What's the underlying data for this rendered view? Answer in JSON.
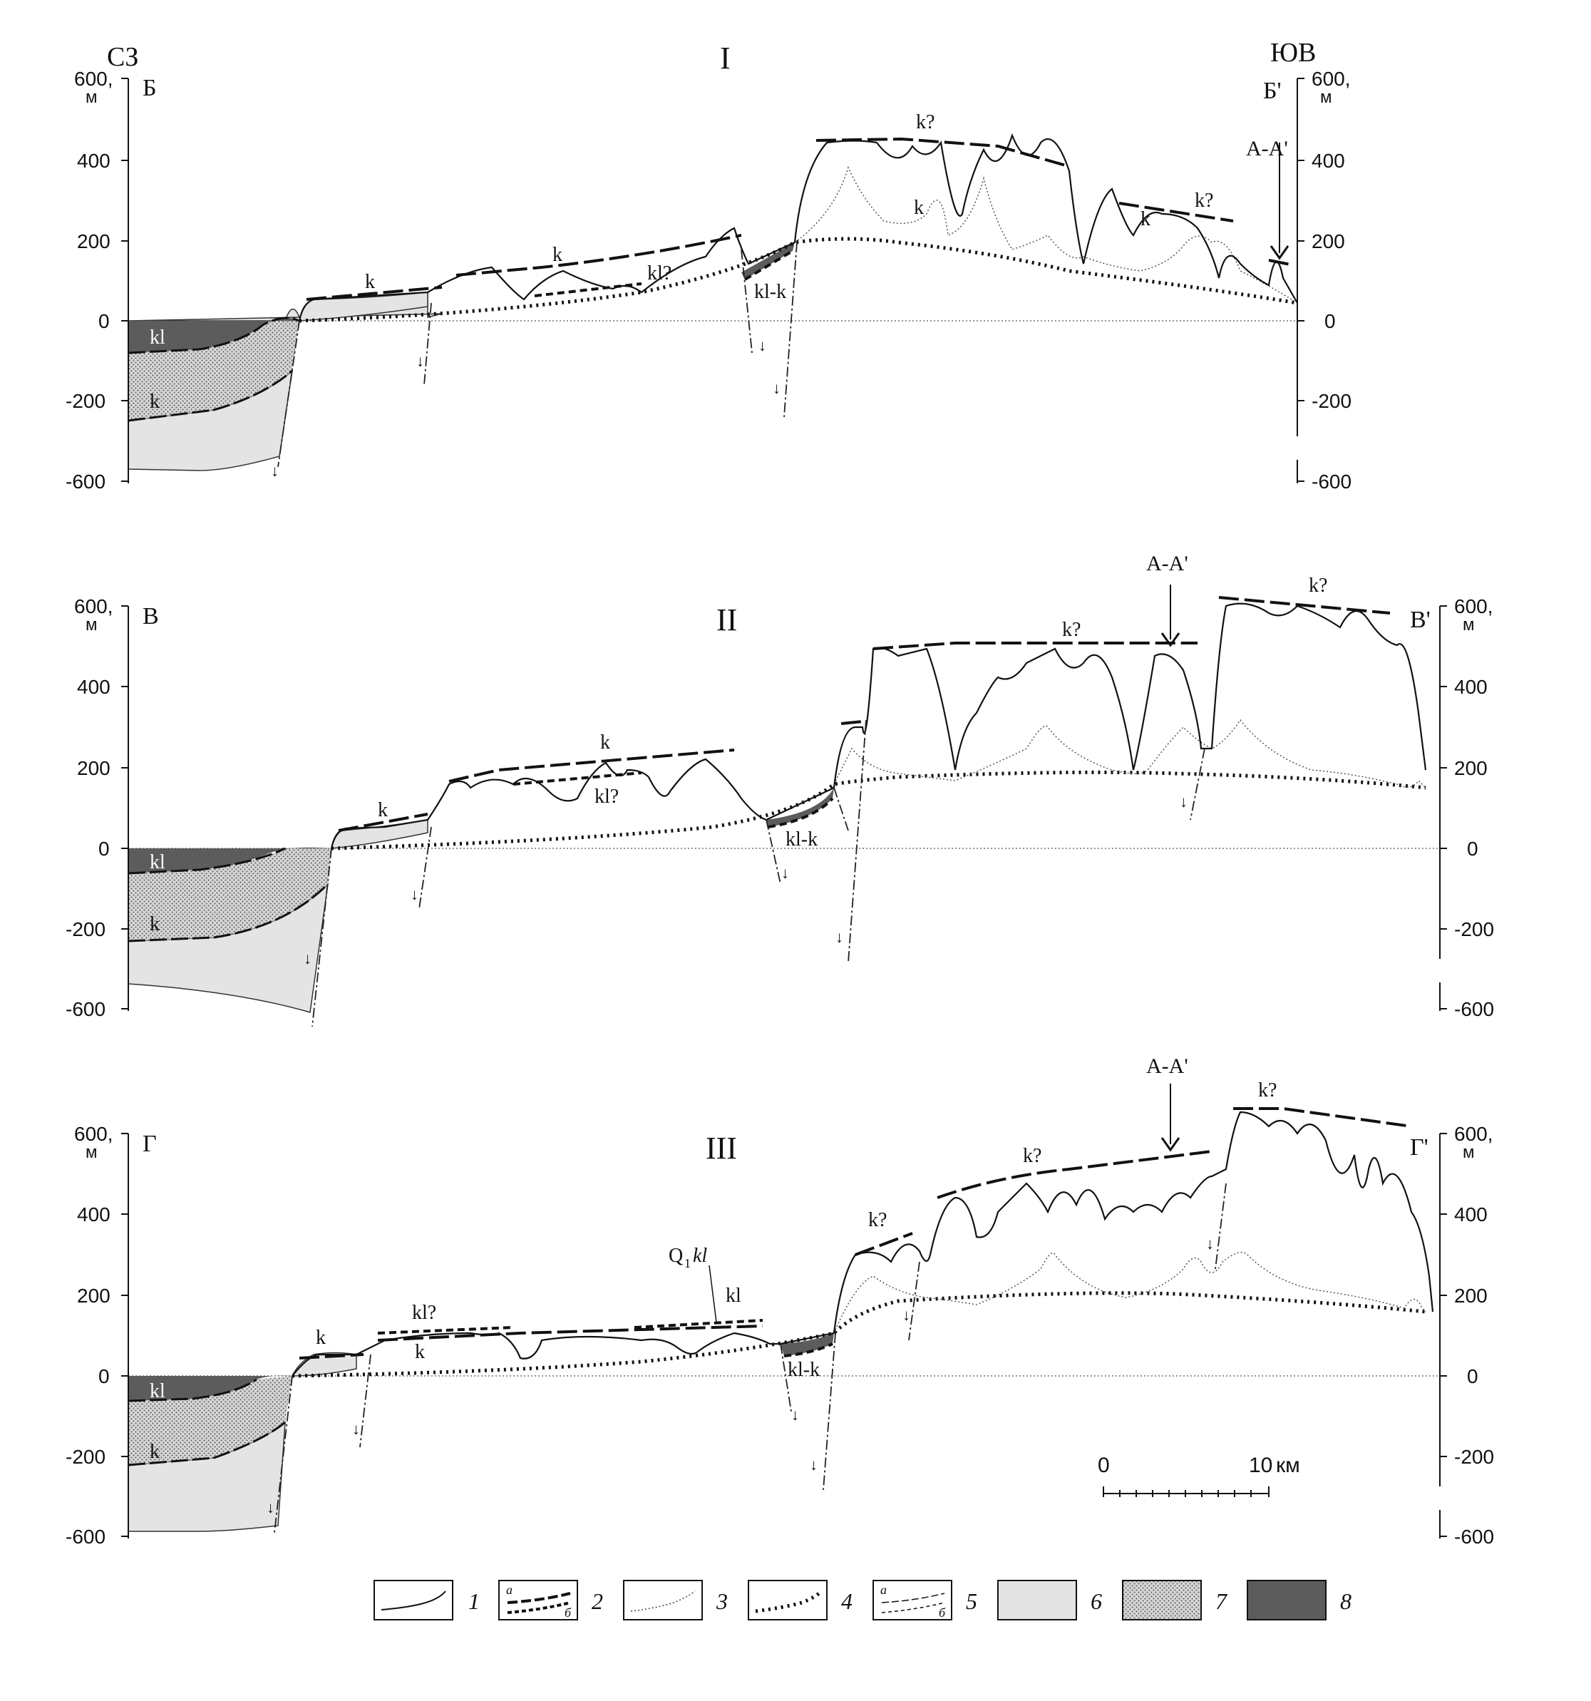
{
  "corner_labels": {
    "left": "СЗ",
    "right": "ЮВ"
  },
  "axis_ticks": [
    "600,",
    "м",
    "400",
    "200",
    "0",
    "-200",
    "-600"
  ],
  "profiles": [
    {
      "numeral": "I",
      "start": "Б",
      "end": "Б'",
      "arrow": "А-А'",
      "labels": [
        "kl",
        "k",
        "k",
        "k",
        "kl?",
        "kl-k",
        "k?",
        "k",
        "k?",
        "k"
      ]
    },
    {
      "numeral": "II",
      "start": "В",
      "end": "В'",
      "arrow": "А-А'",
      "labels": [
        "kl",
        "k",
        "k",
        "k",
        "kl?",
        "kl-k",
        "k?",
        "k?"
      ]
    },
    {
      "numeral": "III",
      "start": "Г",
      "end": "Г'",
      "arrow": "А-А'",
      "labels": [
        "kl",
        "k",
        "k",
        "kl?",
        "k",
        "Q",
        "1",
        "kl",
        "kl",
        "kl-k",
        "k?",
        "k?",
        "k?"
      ]
    }
  ],
  "scale_bar": {
    "start": "0",
    "end": "10",
    "unit": "км"
  },
  "legend": {
    "items": [
      {
        "num": "1",
        "pattern": "solid-line"
      },
      {
        "num": "2",
        "pattern": "dashed-a-b",
        "sub_a": "а",
        "sub_b": "б"
      },
      {
        "num": "3",
        "pattern": "thin-dotted"
      },
      {
        "num": "4",
        "pattern": "heavy-dotted"
      },
      {
        "num": "5",
        "pattern": "thin-dashed-a-b",
        "sub_a": "а",
        "sub_b": "б"
      },
      {
        "num": "6",
        "pattern": "light-grey",
        "color": "#e4e4e4"
      },
      {
        "num": "7",
        "pattern": "stipple",
        "color": "#d2d2d2"
      },
      {
        "num": "8",
        "pattern": "dark-grey",
        "color": "#5c5c5c"
      }
    ]
  },
  "colors": {
    "dark": "#5c5c5c",
    "stipple": "#d2d2d2",
    "light": "#e4e4e4",
    "line": "#111111"
  }
}
